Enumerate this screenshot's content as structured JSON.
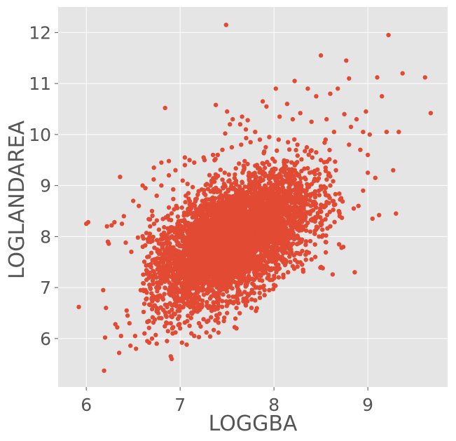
{
  "chart_data": {
    "type": "scatter",
    "title": "",
    "xlabel": "LOGGBA",
    "ylabel": "LOGLANDAREA",
    "xlim": [
      5.7,
      9.85
    ],
    "ylim": [
      5.05,
      12.5
    ],
    "x_ticks": [
      6,
      7,
      8,
      9
    ],
    "y_ticks": [
      6,
      7,
      8,
      9,
      10,
      11,
      12
    ],
    "x_tick_labels": [
      "6",
      "7",
      "8",
      "9"
    ],
    "y_tick_labels": [
      "6",
      "7",
      "8",
      "9",
      "10",
      "11",
      "12"
    ],
    "grid": true,
    "style": "ggplot",
    "marker_color": "#E24A33",
    "background_color": "#E5E5E5",
    "grid_color": "#FFFFFF",
    "core_cloud": {
      "description": "dense elliptical cloud of points",
      "center": [
        7.55,
        7.95
      ],
      "x_spread": 0.42,
      "y_spread": 0.62,
      "correlation": 0.55
    },
    "points": [
      [
        5.92,
        6.62
      ],
      [
        6.0,
        8.25
      ],
      [
        6.02,
        8.28
      ],
      [
        6.18,
        6.95
      ],
      [
        6.19,
        5.37
      ],
      [
        6.21,
        6.6
      ],
      [
        6.2,
        6.02
      ],
      [
        6.22,
        8.2
      ],
      [
        6.23,
        7.9
      ],
      [
        6.24,
        7.86
      ],
      [
        6.27,
        8.22
      ],
      [
        6.3,
        8.28
      ],
      [
        6.31,
        6.28
      ],
      [
        6.33,
        6.22
      ],
      [
        6.35,
        5.72
      ],
      [
        6.36,
        9.17
      ],
      [
        6.37,
        6.05
      ],
      [
        6.38,
        8.25
      ],
      [
        6.4,
        8.4
      ],
      [
        6.42,
        7.88
      ],
      [
        6.43,
        6.55
      ],
      [
        6.44,
        6.45
      ],
      [
        6.46,
        6.3
      ],
      [
        6.47,
        5.86
      ],
      [
        6.48,
        7.7
      ],
      [
        6.5,
        8.7
      ],
      [
        6.52,
        6.05
      ],
      [
        6.53,
        5.8
      ],
      [
        6.55,
        7.98
      ],
      [
        6.56,
        8.6
      ],
      [
        6.58,
        6.95
      ],
      [
        6.6,
        9.0
      ],
      [
        6.62,
        6.1
      ],
      [
        6.63,
        8.95
      ],
      [
        6.65,
        5.95
      ],
      [
        6.67,
        5.92
      ],
      [
        6.7,
        6.0
      ],
      [
        6.72,
        9.35
      ],
      [
        6.74,
        6.07
      ],
      [
        6.75,
        5.9
      ],
      [
        6.8,
        9.45
      ],
      [
        6.84,
        10.52
      ],
      [
        6.86,
        5.95
      ],
      [
        6.88,
        9.48
      ],
      [
        6.9,
        5.65
      ],
      [
        6.91,
        5.6
      ],
      [
        6.92,
        6.1
      ],
      [
        6.95,
        6.12
      ],
      [
        7.02,
        5.92
      ],
      [
        7.05,
        9.55
      ],
      [
        7.07,
        5.88
      ],
      [
        7.1,
        9.5
      ],
      [
        7.12,
        6.1
      ],
      [
        7.15,
        6.05
      ],
      [
        7.2,
        6.03
      ],
      [
        7.26,
        9.5
      ],
      [
        7.28,
        6.12
      ],
      [
        7.32,
        6.04
      ],
      [
        7.38,
        10.58
      ],
      [
        7.4,
        9.6
      ],
      [
        7.48,
        10.02
      ],
      [
        7.49,
        12.15
      ],
      [
        7.5,
        10.45
      ],
      [
        7.53,
        10.2
      ],
      [
        7.56,
        10.3
      ],
      [
        7.6,
        6.2
      ],
      [
        7.64,
        10.2
      ],
      [
        7.66,
        10.35
      ],
      [
        7.7,
        10.1
      ],
      [
        7.72,
        10.28
      ],
      [
        7.76,
        6.6
      ],
      [
        7.8,
        10.05
      ],
      [
        7.88,
        10.65
      ],
      [
        7.9,
        6.95
      ],
      [
        7.92,
        10.55
      ],
      [
        7.96,
        7.15
      ],
      [
        8.02,
        10.9
      ],
      [
        8.06,
        10.35
      ],
      [
        8.1,
        7.2
      ],
      [
        8.14,
        10.6
      ],
      [
        8.2,
        10.3
      ],
      [
        8.22,
        11.05
      ],
      [
        8.28,
        10.42
      ],
      [
        8.31,
        7.35
      ],
      [
        8.36,
        10.9
      ],
      [
        8.4,
        10.25
      ],
      [
        8.45,
        10.75
      ],
      [
        8.5,
        11.55
      ],
      [
        8.52,
        7.38
      ],
      [
        8.56,
        10.3
      ],
      [
        8.6,
        10.8
      ],
      [
        8.64,
        10.05
      ],
      [
        8.68,
        10.9
      ],
      [
        8.72,
        7.78
      ],
      [
        8.75,
        10.4
      ],
      [
        8.77,
        11.45
      ],
      [
        8.8,
        11.1
      ],
      [
        8.82,
        10.15
      ],
      [
        8.86,
        7.3
      ],
      [
        8.88,
        10.3
      ],
      [
        8.9,
        8.6
      ],
      [
        8.92,
        9.7
      ],
      [
        8.95,
        10.05
      ],
      [
        8.98,
        10.45
      ],
      [
        9.0,
        9.25
      ],
      [
        9.02,
        10.0
      ],
      [
        9.05,
        8.35
      ],
      [
        9.1,
        11.12
      ],
      [
        9.12,
        8.42
      ],
      [
        9.15,
        10.75
      ],
      [
        9.2,
        10.05
      ],
      [
        9.22,
        11.95
      ],
      [
        9.27,
        9.3
      ],
      [
        9.3,
        8.45
      ],
      [
        9.33,
        10.05
      ],
      [
        9.37,
        11.2
      ],
      [
        9.61,
        11.12
      ],
      [
        9.67,
        10.42
      ],
      [
        9.0,
        9.6
      ],
      [
        9.08,
        9.15
      ],
      [
        8.95,
        8.9
      ],
      [
        8.85,
        8.55
      ],
      [
        8.8,
        9.8
      ],
      [
        8.7,
        8.4
      ],
      [
        8.66,
        9.3
      ],
      [
        8.6,
        8.2
      ],
      [
        8.55,
        9.9
      ],
      [
        8.48,
        8.0
      ],
      [
        8.44,
        7.6
      ],
      [
        8.4,
        7.55
      ],
      [
        8.35,
        7.7
      ],
      [
        8.3,
        7.45
      ],
      [
        8.25,
        7.5
      ],
      [
        8.2,
        7.42
      ],
      [
        8.15,
        7.3
      ],
      [
        8.1,
        7.25
      ],
      [
        8.05,
        7.2
      ],
      [
        8.0,
        7.05
      ],
      [
        7.95,
        6.95
      ],
      [
        7.9,
        6.85
      ],
      [
        7.85,
        6.8
      ],
      [
        7.8,
        6.75
      ],
      [
        7.7,
        6.65
      ],
      [
        7.6,
        6.6
      ],
      [
        7.5,
        6.5
      ],
      [
        7.4,
        6.4
      ],
      [
        7.3,
        6.35
      ],
      [
        7.2,
        6.3
      ],
      [
        7.1,
        6.25
      ],
      [
        7.0,
        6.2
      ],
      [
        6.9,
        6.3
      ],
      [
        6.8,
        6.4
      ],
      [
        6.75,
        6.6
      ],
      [
        6.7,
        6.8
      ],
      [
        6.68,
        7.0
      ],
      [
        6.66,
        7.3
      ],
      [
        6.65,
        7.6
      ],
      [
        6.66,
        7.9
      ],
      [
        6.68,
        8.2
      ],
      [
        6.7,
        8.5
      ],
      [
        6.75,
        8.8
      ],
      [
        6.8,
        9.0
      ],
      [
        6.88,
        9.2
      ],
      [
        6.95,
        9.3
      ],
      [
        7.05,
        9.4
      ],
      [
        7.15,
        9.45
      ],
      [
        7.25,
        9.55
      ],
      [
        7.35,
        9.6
      ],
      [
        7.45,
        9.7
      ],
      [
        7.55,
        9.75
      ],
      [
        7.65,
        9.8
      ],
      [
        7.75,
        9.85
      ],
      [
        7.85,
        9.9
      ],
      [
        7.95,
        9.95
      ],
      [
        8.05,
        9.9
      ],
      [
        8.15,
        9.85
      ],
      [
        8.25,
        9.8
      ],
      [
        8.35,
        9.75
      ],
      [
        8.45,
        9.65
      ],
      [
        8.5,
        9.5
      ],
      [
        8.55,
        9.35
      ],
      [
        8.58,
        9.2
      ],
      [
        8.6,
        9.0
      ],
      [
        8.58,
        8.8
      ],
      [
        8.55,
        8.6
      ]
    ]
  }
}
